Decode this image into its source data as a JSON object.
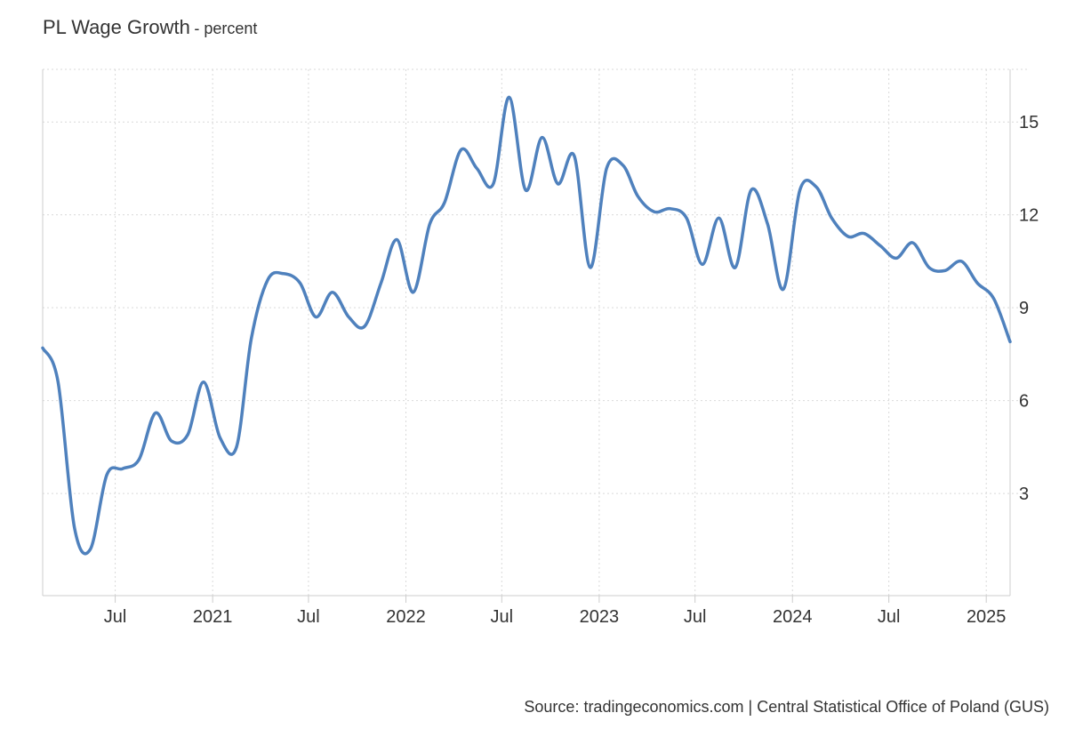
{
  "header": {
    "title": "PL Wage Growth",
    "subtitle": "- percent"
  },
  "footer": {
    "source": "Source: tradingeconomics.com | Central Statistical Office of Poland (GUS)"
  },
  "colors": {
    "line": "#4f81bd",
    "grid": "#d9d9d9",
    "axis": "#cccccc",
    "text": "#333333"
  },
  "chart_data": {
    "type": "line",
    "title": "PL Wage Growth",
    "subtitle": "- percent",
    "xlabel": "",
    "ylabel": "",
    "ylim": [
      -0.3,
      16.7
    ],
    "xlim": [
      "2020-02-15",
      "2025-02-15"
    ],
    "grid": true,
    "legend": "none",
    "x_ticks": [
      {
        "date": "2020-07-01",
        "label": "Jul"
      },
      {
        "date": "2021-01-01",
        "label": "2021"
      },
      {
        "date": "2021-07-01",
        "label": "Jul"
      },
      {
        "date": "2022-01-01",
        "label": "2022"
      },
      {
        "date": "2022-07-01",
        "label": "Jul"
      },
      {
        "date": "2023-01-01",
        "label": "2023"
      },
      {
        "date": "2023-07-01",
        "label": "Jul"
      },
      {
        "date": "2024-01-01",
        "label": "2024"
      },
      {
        "date": "2024-07-01",
        "label": "Jul"
      },
      {
        "date": "2025-01-01",
        "label": "2025"
      }
    ],
    "y_ticks": [
      3,
      6,
      9,
      12,
      15
    ],
    "series": [
      {
        "x": [
          "2020-02-15",
          "2020-03-15",
          "2020-04-15",
          "2020-05-15",
          "2020-06-15",
          "2020-07-15",
          "2020-08-15",
          "2020-09-15",
          "2020-10-15",
          "2020-11-15",
          "2020-12-15",
          "2021-01-15",
          "2021-02-15",
          "2021-03-15",
          "2021-04-15",
          "2021-05-15",
          "2021-06-15",
          "2021-07-15",
          "2021-08-15",
          "2021-09-15",
          "2021-10-15",
          "2021-11-15",
          "2021-12-15",
          "2022-01-15",
          "2022-02-15",
          "2022-03-15",
          "2022-04-15",
          "2022-05-15",
          "2022-06-15",
          "2022-07-15",
          "2022-08-15",
          "2022-09-15",
          "2022-10-15",
          "2022-11-15",
          "2022-12-15",
          "2023-01-15",
          "2023-02-15",
          "2023-03-15",
          "2023-04-15",
          "2023-05-15",
          "2023-06-15",
          "2023-07-15",
          "2023-08-15",
          "2023-09-15",
          "2023-10-15",
          "2023-11-15",
          "2023-12-15",
          "2024-01-15",
          "2024-02-15",
          "2024-03-15",
          "2024-04-15",
          "2024-05-15",
          "2024-06-15",
          "2024-07-15",
          "2024-08-15",
          "2024-09-15",
          "2024-10-15",
          "2024-11-15",
          "2024-12-15",
          "2025-01-15",
          "2025-02-15"
        ],
        "values": [
          7.7,
          6.6,
          1.9,
          1.2,
          3.6,
          3.8,
          4.1,
          5.6,
          4.7,
          4.9,
          6.6,
          4.8,
          4.5,
          8.0,
          9.9,
          10.1,
          9.8,
          8.7,
          9.5,
          8.7,
          8.4,
          9.8,
          11.2,
          9.5,
          11.7,
          12.4,
          14.1,
          13.5,
          13.0,
          15.8,
          12.8,
          14.5,
          13.0,
          13.9,
          10.3,
          13.5,
          13.6,
          12.6,
          12.1,
          12.2,
          11.9,
          10.4,
          11.9,
          10.3,
          12.8,
          11.7,
          9.6,
          12.8,
          12.9,
          11.9,
          11.3,
          11.4,
          11.0,
          10.6,
          11.1,
          10.3,
          10.2,
          10.5,
          9.8,
          9.3,
          7.9
        ]
      }
    ]
  }
}
